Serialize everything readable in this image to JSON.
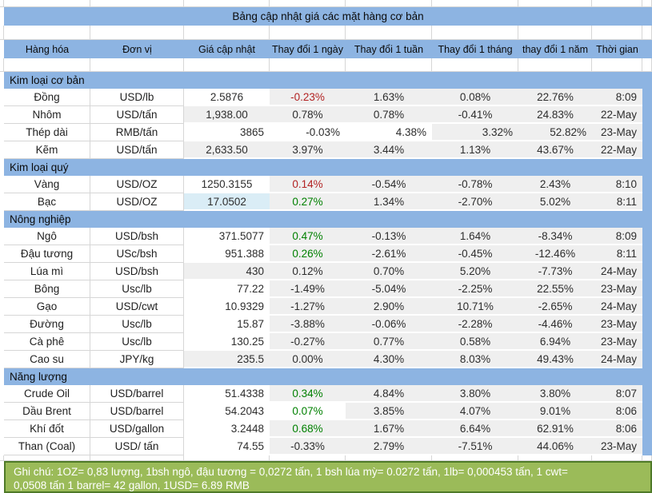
{
  "title": "Bảng cập nhật giá các mặt hàng cơ bản",
  "columns": [
    "Hàng hóa",
    "Đơn vị",
    "Giá cập nhật",
    "Thay đổi 1 ngày",
    "Thay đổi 1 tuần",
    "Thay đổi 1 tháng",
    "thay đổi 1 năm",
    "Thời gian"
  ],
  "sections": [
    {
      "label": "Kim loại cơ bản",
      "rows": [
        {
          "name": "Đồng",
          "unit": "USD/lb",
          "price": "2.5876",
          "changes": [
            "-0.23%",
            "1.63%",
            "0.08%",
            "22.76%"
          ],
          "time": "8:09",
          "price_align": "center",
          "price_bg": "white",
          "change_colors": [
            "red",
            "",
            "",
            ""
          ]
        },
        {
          "name": "Nhôm",
          "unit": "USD/tấn",
          "price": "1,938.00",
          "changes": [
            "0.78%",
            "0.78%",
            "-0.41%",
            "24.83%"
          ],
          "time": "22-May",
          "price_align": "center"
        },
        {
          "name": "Thép dài",
          "unit": "RMB/tấn",
          "price": "3865",
          "changes": [
            "-0.03%",
            "4.38%",
            "3.32%",
            "52.82%"
          ],
          "time": "23-May",
          "price_align": "right",
          "price_bg": "white",
          "changes_align": "right",
          "change_bgs": [
            "white",
            "white",
            "",
            ""
          ]
        },
        {
          "name": "Kẽm",
          "unit": "USD/tấn",
          "price": "2,633.50",
          "changes": [
            "3.97%",
            "3.44%",
            "1.13%",
            "43.67%"
          ],
          "time": "22-May",
          "price_align": "center"
        }
      ]
    },
    {
      "label": "Kim loại quý",
      "rows": [
        {
          "name": "Vàng",
          "unit": "USD/OZ",
          "price": "1250.3155",
          "changes": [
            "0.14%",
            "-0.54%",
            "-0.78%",
            "2.43%"
          ],
          "time": "8:10",
          "price_align": "center",
          "price_bg": "white",
          "change_colors": [
            "red",
            "",
            "",
            ""
          ]
        },
        {
          "name": "Bạc",
          "unit": "USD/OZ",
          "price": "17.0502",
          "changes": [
            "0.27%",
            "1.34%",
            "-2.70%",
            "5.02%"
          ],
          "time": "8:11",
          "price_align": "center",
          "price_bg": "selected",
          "change_colors": [
            "green",
            "",
            "",
            ""
          ]
        }
      ]
    },
    {
      "label": "Nông nghiệp",
      "rows": [
        {
          "name": "Ngô",
          "unit": "USD/bsh",
          "price": "371.5077",
          "changes": [
            "0.47%",
            "-0.13%",
            "1.64%",
            "-8.34%"
          ],
          "time": "8:09",
          "price_align": "right",
          "price_bg": "white",
          "change_colors": [
            "green",
            "",
            "",
            ""
          ]
        },
        {
          "name": "Đậu tương",
          "unit": "USc/bsh",
          "price": "951.388",
          "changes": [
            "0.26%",
            "-2.61%",
            "-0.45%",
            "-12.46%"
          ],
          "time": "8:11",
          "price_align": "right",
          "price_bg": "white",
          "change_colors": [
            "green",
            "",
            "",
            ""
          ]
        },
        {
          "name": "Lúa mì",
          "unit": "USD/bsh",
          "price": "430",
          "changes": [
            "0.12%",
            "0.70%",
            "5.20%",
            "-7.73%"
          ],
          "time": "24-May",
          "price_align": "right"
        },
        {
          "name": "Bông",
          "unit": "Usc/lb",
          "price": "77.22",
          "changes": [
            "-1.49%",
            "-5.04%",
            "-2.25%",
            "22.55%"
          ],
          "time": "23-May",
          "price_align": "right",
          "price_bg": "white"
        },
        {
          "name": "Gạo",
          "unit": "USD/cwt",
          "price": "10.9329",
          "changes": [
            "-1.27%",
            "2.90%",
            "10.71%",
            "-2.65%"
          ],
          "time": "24-May",
          "price_align": "right",
          "price_bg": "white"
        },
        {
          "name": "Đường",
          "unit": "Usc/lb",
          "price": "15.87",
          "changes": [
            "-3.88%",
            "-0.06%",
            "-2.28%",
            "-4.46%"
          ],
          "time": "23-May",
          "price_align": "right",
          "price_bg": "white"
        },
        {
          "name": "Cà phê",
          "unit": "Usc/lb",
          "price": "130.25",
          "changes": [
            "-0.27%",
            "0.77%",
            "0.58%",
            "6.94%"
          ],
          "time": "23-May",
          "price_align": "right",
          "price_bg": "white"
        },
        {
          "name": "Cao su",
          "unit": "JPY/kg",
          "price": "235.5",
          "changes": [
            "0.00%",
            "4.30%",
            "8.03%",
            "49.43%"
          ],
          "time": "24-May",
          "price_align": "right"
        }
      ]
    },
    {
      "label": "Năng lượng",
      "rows": [
        {
          "name": "Crude Oil",
          "unit": "USD/barrel",
          "price": "51.4338",
          "changes": [
            "0.34%",
            "4.84%",
            "3.80%",
            "3.80%"
          ],
          "time": "8:07",
          "price_align": "right",
          "price_bg": "white",
          "change_colors": [
            "green",
            "",
            "",
            ""
          ]
        },
        {
          "name": "Dầu Brent",
          "unit": "USD/barrel",
          "price": "54.2043",
          "changes": [
            "0.07%",
            "3.85%",
            "4.07%",
            "9.01%"
          ],
          "time": "8:06",
          "price_align": "right",
          "price_bg": "white",
          "change_colors": [
            "green",
            "",
            "",
            ""
          ],
          "change_bgs": [
            "white",
            "",
            "",
            ""
          ]
        },
        {
          "name": "Khí đốt",
          "unit": "USD/gallon",
          "price": "3.2448",
          "changes": [
            "0.68%",
            "1.67%",
            "6.64%",
            "62.91%"
          ],
          "time": "8:06",
          "price_align": "right",
          "price_bg": "white",
          "change_colors": [
            "green",
            "",
            "",
            ""
          ]
        },
        {
          "name": "Than (Coal)",
          "unit": "USD/ tấn",
          "price": "74.55",
          "changes": [
            "-0.33%",
            "2.79%",
            "-7.51%",
            "44.06%"
          ],
          "time": "23-May",
          "price_align": "right",
          "price_bg": "white"
        }
      ]
    }
  ],
  "note": {
    "line1": "Ghi chú: 1OZ= 0,83 lượng,   1bsh ngô, đậu tương = 0,0272 tấn, 1 bsh lúa mỳ=  0.0272 tấn, 1lb= 0,000453 tấn, 1 cwt=",
    "line2": "0,0508 tấn 1 barrel= 42 gallon, 1USD= 6.89 RMB"
  },
  "colors": {
    "band_blue": "#8DB4E2",
    "cell_gray": "#EFEFEF",
    "selected_cell_blue": "#DAEDF6",
    "negative_red": "#B22222",
    "positive_green": "#008000",
    "note_green": "#9BBB59",
    "note_border_green": "#4F7A28"
  }
}
